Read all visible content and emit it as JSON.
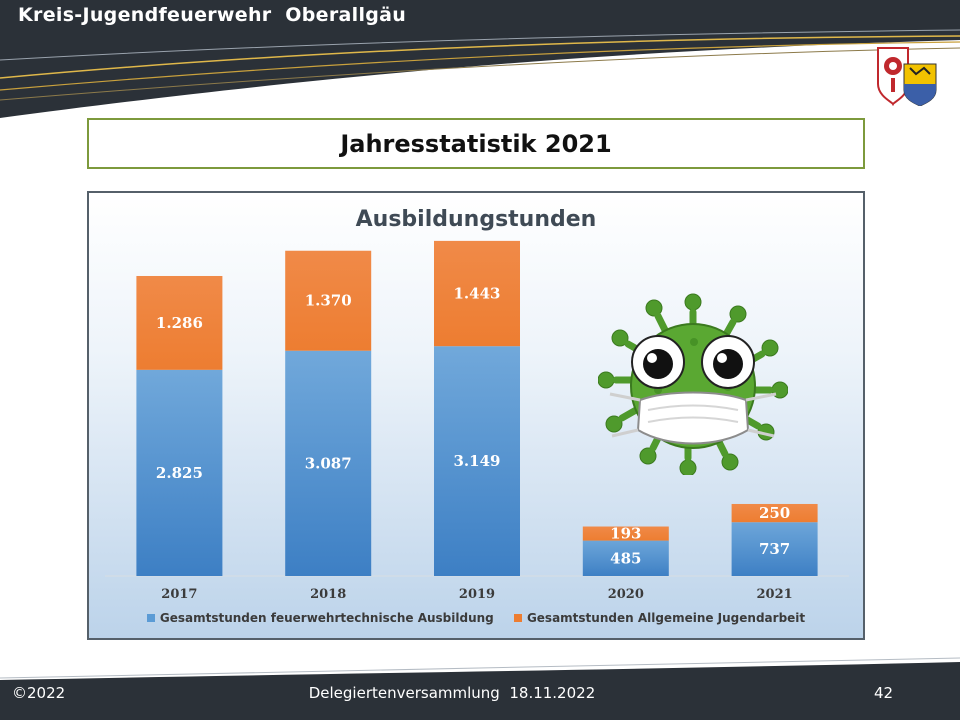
{
  "header": {
    "org_title": "Kreis-Jugendfeuerwehr  Oberallgäu"
  },
  "slide": {
    "title": "Jahresstatistik 2021"
  },
  "chart_data": {
    "type": "bar",
    "stacked": true,
    "title": "Ausbildungstunden",
    "categories": [
      "2017",
      "2018",
      "2019",
      "2020",
      "2021"
    ],
    "series": [
      {
        "name": "Gesamtstunden feuerwehrtechnische Ausbildung",
        "values": [
          2825,
          3087,
          3149,
          485,
          737
        ],
        "labels": [
          "2.825",
          "3.087",
          "3.149",
          "485",
          "737"
        ],
        "color": "#5b9bd5"
      },
      {
        "name": "Gesamtstunden Allgemeine Jugendarbeit",
        "values": [
          1286,
          1370,
          1443,
          193,
          250
        ],
        "labels": [
          "1.286",
          "1.370",
          "1.443",
          "193",
          "250"
        ],
        "color": "#ed7d31"
      }
    ],
    "xlabel": "",
    "ylabel": "",
    "ylim": [
      0,
      4700
    ],
    "grid": false,
    "legend_position": "bottom"
  },
  "footer": {
    "copyright": "©2022",
    "event": "Delegiertenversammlung  18.11.2022",
    "page_number": "42"
  },
  "colors": {
    "header_dark": "#2b3138",
    "title_border": "#7d9a3c",
    "virus_green": "#4f9a2c"
  }
}
